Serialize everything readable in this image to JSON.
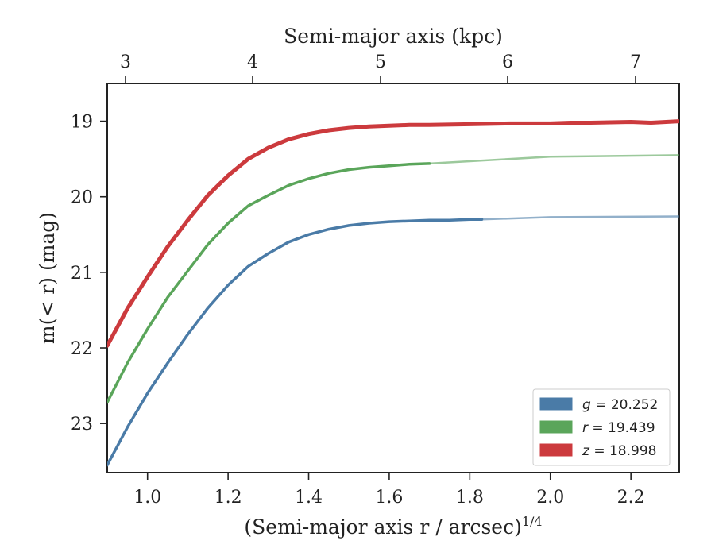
{
  "chart_data": {
    "type": "line",
    "xlabel": "(Semi-major axis r / arcsec)",
    "xlabel_exponent": "1/4",
    "ylabel": "m(< r) (mag)",
    "top_xlabel": "Semi-major axis (kpc)",
    "xlim": [
      0.9,
      2.32
    ],
    "ylim": [
      23.65,
      18.5
    ],
    "y_inverted": true,
    "x_ticks": [
      "1.0",
      "1.2",
      "1.4",
      "1.6",
      "1.8",
      "2.0",
      "2.2"
    ],
    "y_ticks": [
      "19",
      "20",
      "21",
      "22",
      "23"
    ],
    "top_x_ticks": [
      "3",
      "4",
      "5",
      "6",
      "7"
    ],
    "legend_position": "lower-right",
    "grid": false,
    "series": [
      {
        "name": "g = 20.252",
        "legend_var": "g",
        "legend_value": "= 20.252",
        "color": "#4a7ba7",
        "x": [
          0.9,
          0.95,
          1.0,
          1.05,
          1.1,
          1.15,
          1.2,
          1.25,
          1.3,
          1.35,
          1.4,
          1.45,
          1.5,
          1.55,
          1.6,
          1.65,
          1.7,
          1.75,
          1.8,
          1.83
        ],
        "y": [
          23.55,
          23.05,
          22.6,
          22.2,
          21.82,
          21.47,
          21.17,
          20.92,
          20.75,
          20.6,
          20.5,
          20.43,
          20.38,
          20.35,
          20.33,
          20.32,
          20.31,
          20.31,
          20.3,
          20.3
        ],
        "extrapolation_x": [
          1.83,
          2.0,
          2.32
        ],
        "extrapolation_y": [
          20.3,
          20.27,
          20.26
        ]
      },
      {
        "name": "r = 19.439",
        "legend_var": "r",
        "legend_value": "= 19.439",
        "color": "#5aa55a",
        "x": [
          0.9,
          0.95,
          1.0,
          1.05,
          1.1,
          1.15,
          1.2,
          1.25,
          1.3,
          1.35,
          1.4,
          1.45,
          1.5,
          1.55,
          1.6,
          1.65,
          1.7
        ],
        "y": [
          22.72,
          22.2,
          21.75,
          21.33,
          20.98,
          20.63,
          20.35,
          20.12,
          19.98,
          19.85,
          19.76,
          19.69,
          19.64,
          19.61,
          19.59,
          19.57,
          19.56
        ],
        "extrapolation_x": [
          1.7,
          2.0,
          2.32
        ],
        "extrapolation_y": [
          19.56,
          19.47,
          19.45
        ]
      },
      {
        "name": "z = 18.998",
        "legend_var": "z",
        "legend_value": "= 18.998",
        "color": "#cc3a3d",
        "x": [
          0.9,
          0.95,
          1.0,
          1.05,
          1.1,
          1.15,
          1.2,
          1.25,
          1.3,
          1.35,
          1.4,
          1.45,
          1.5,
          1.55,
          1.6,
          1.65,
          1.7,
          1.8,
          1.9,
          2.0,
          2.05,
          2.1,
          2.2,
          2.25,
          2.32
        ],
        "y": [
          21.97,
          21.48,
          21.06,
          20.66,
          20.31,
          19.98,
          19.72,
          19.5,
          19.35,
          19.24,
          19.17,
          19.12,
          19.09,
          19.07,
          19.06,
          19.05,
          19.05,
          19.04,
          19.03,
          19.03,
          19.02,
          19.02,
          19.01,
          19.02,
          19.0
        ]
      }
    ]
  }
}
